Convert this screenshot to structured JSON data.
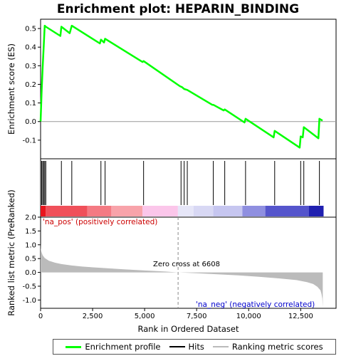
{
  "title": "Enrichment plot: HEPARIN_BINDING",
  "chart_data": [
    {
      "type": "line",
      "panel": "enrichment",
      "ylabel": "Enrichment score (ES)",
      "xlim": [
        0,
        14200
      ],
      "ylim": [
        -0.2,
        0.55
      ],
      "yticks": [
        "0.5",
        "0.4",
        "0.3",
        "0.2",
        "0.1",
        "0.0",
        "-0.1"
      ],
      "ytick_values": [
        0.5,
        0.4,
        0.3,
        0.2,
        0.1,
        0.0,
        -0.1
      ],
      "series": [
        {
          "name": "Enrichment profile",
          "color": "#00ff00",
          "x": [
            0,
            50,
            100,
            150,
            200,
            250,
            950,
            1000,
            1400,
            1500,
            2850,
            2900,
            3050,
            3100,
            4900,
            4950,
            6700,
            6800,
            6900,
            7050,
            8250,
            8300,
            8800,
            8850,
            9800,
            9850,
            11200,
            11250,
            12450,
            12500,
            12600,
            12650,
            13350,
            13400,
            13550
          ],
          "y": [
            0.0,
            0.165,
            0.29,
            0.405,
            0.515,
            0.51,
            0.46,
            0.51,
            0.475,
            0.515,
            0.42,
            0.44,
            0.425,
            0.445,
            0.32,
            0.325,
            0.19,
            0.185,
            0.175,
            0.17,
            0.09,
            0.09,
            0.06,
            0.065,
            -0.005,
            0.015,
            -0.085,
            -0.05,
            -0.14,
            -0.08,
            -0.085,
            -0.03,
            -0.09,
            0.015,
            0.005
          ]
        }
      ]
    },
    {
      "type": "hits",
      "panel": "hits",
      "hit_positions": [
        50,
        100,
        150,
        200,
        250,
        1000,
        1500,
        2900,
        3100,
        4950,
        6750,
        6900,
        7050,
        8300,
        8850,
        9850,
        11250,
        12500,
        12650,
        13400
      ],
      "colorbar": [
        {
          "from": 0,
          "to": 250,
          "color": "#e8141c"
        },
        {
          "from": 250,
          "to": 2250,
          "color": "#f0505a"
        },
        {
          "from": 2250,
          "to": 3400,
          "color": "#f47a83"
        },
        {
          "from": 3400,
          "to": 4900,
          "color": "#f8a3aa"
        },
        {
          "from": 4900,
          "to": 6600,
          "color": "#fbc6ea"
        },
        {
          "from": 6600,
          "to": 7350,
          "color": "#e6e6f8"
        },
        {
          "from": 7350,
          "to": 8300,
          "color": "#d8d8f4"
        },
        {
          "from": 8300,
          "to": 9700,
          "color": "#c6c6f0"
        },
        {
          "from": 9700,
          "to": 10800,
          "color": "#8f8fe0"
        },
        {
          "from": 10800,
          "to": 12900,
          "color": "#5555cc"
        },
        {
          "from": 12900,
          "to": 13600,
          "color": "#2020b0"
        }
      ]
    },
    {
      "type": "area",
      "panel": "ranked_metric",
      "xlabel": "Rank in Ordered Dataset",
      "ylabel": "Ranked list metric (PreRanked)",
      "xlim": [
        0,
        14200
      ],
      "ylim": [
        -1.3,
        2.0
      ],
      "xticks": [
        "0",
        "2,500",
        "5,000",
        "7,500",
        "10,000",
        "12,500"
      ],
      "xtick_values": [
        0,
        2500,
        5000,
        7500,
        10000,
        12500
      ],
      "yticks": [
        "2.0",
        "1.5",
        "1.0",
        "0.5",
        "0.0",
        "-0.5",
        "-1.0"
      ],
      "ytick_values": [
        2.0,
        1.5,
        1.0,
        0.5,
        0.0,
        -0.5,
        -1.0
      ],
      "series": [
        {
          "name": "Ranking metric scores",
          "color": "#bbbbbb",
          "x": [
            0,
            10,
            50,
            100,
            200,
            400,
            700,
            1000,
            1500,
            2000,
            3000,
            4000,
            5000,
            6000,
            6608,
            7500,
            8500,
            9500,
            10500,
            11500,
            12300,
            12800,
            13100,
            13300,
            13450,
            13500,
            13540,
            13560
          ],
          "y": [
            1.05,
            0.85,
            0.72,
            0.62,
            0.52,
            0.42,
            0.35,
            0.3,
            0.25,
            0.21,
            0.16,
            0.11,
            0.07,
            0.03,
            0.0,
            -0.03,
            -0.07,
            -0.11,
            -0.16,
            -0.22,
            -0.28,
            -0.35,
            -0.42,
            -0.52,
            -0.65,
            -0.78,
            -0.95,
            -1.25
          ]
        }
      ],
      "annotations": {
        "pos_label": "'na_pos' (positively correlated)",
        "neg_label": "'na_neg' (negatively correlated)",
        "zero_cross_label": "Zero cross at 6608",
        "zero_cross_x": 6608
      }
    }
  ],
  "legend": {
    "items": [
      {
        "label": "Enrichment profile",
        "color": "#00ff00"
      },
      {
        "label": "Hits",
        "color": "#000000"
      },
      {
        "label": "Ranking metric scores",
        "color": "#bbbbbb"
      }
    ]
  }
}
